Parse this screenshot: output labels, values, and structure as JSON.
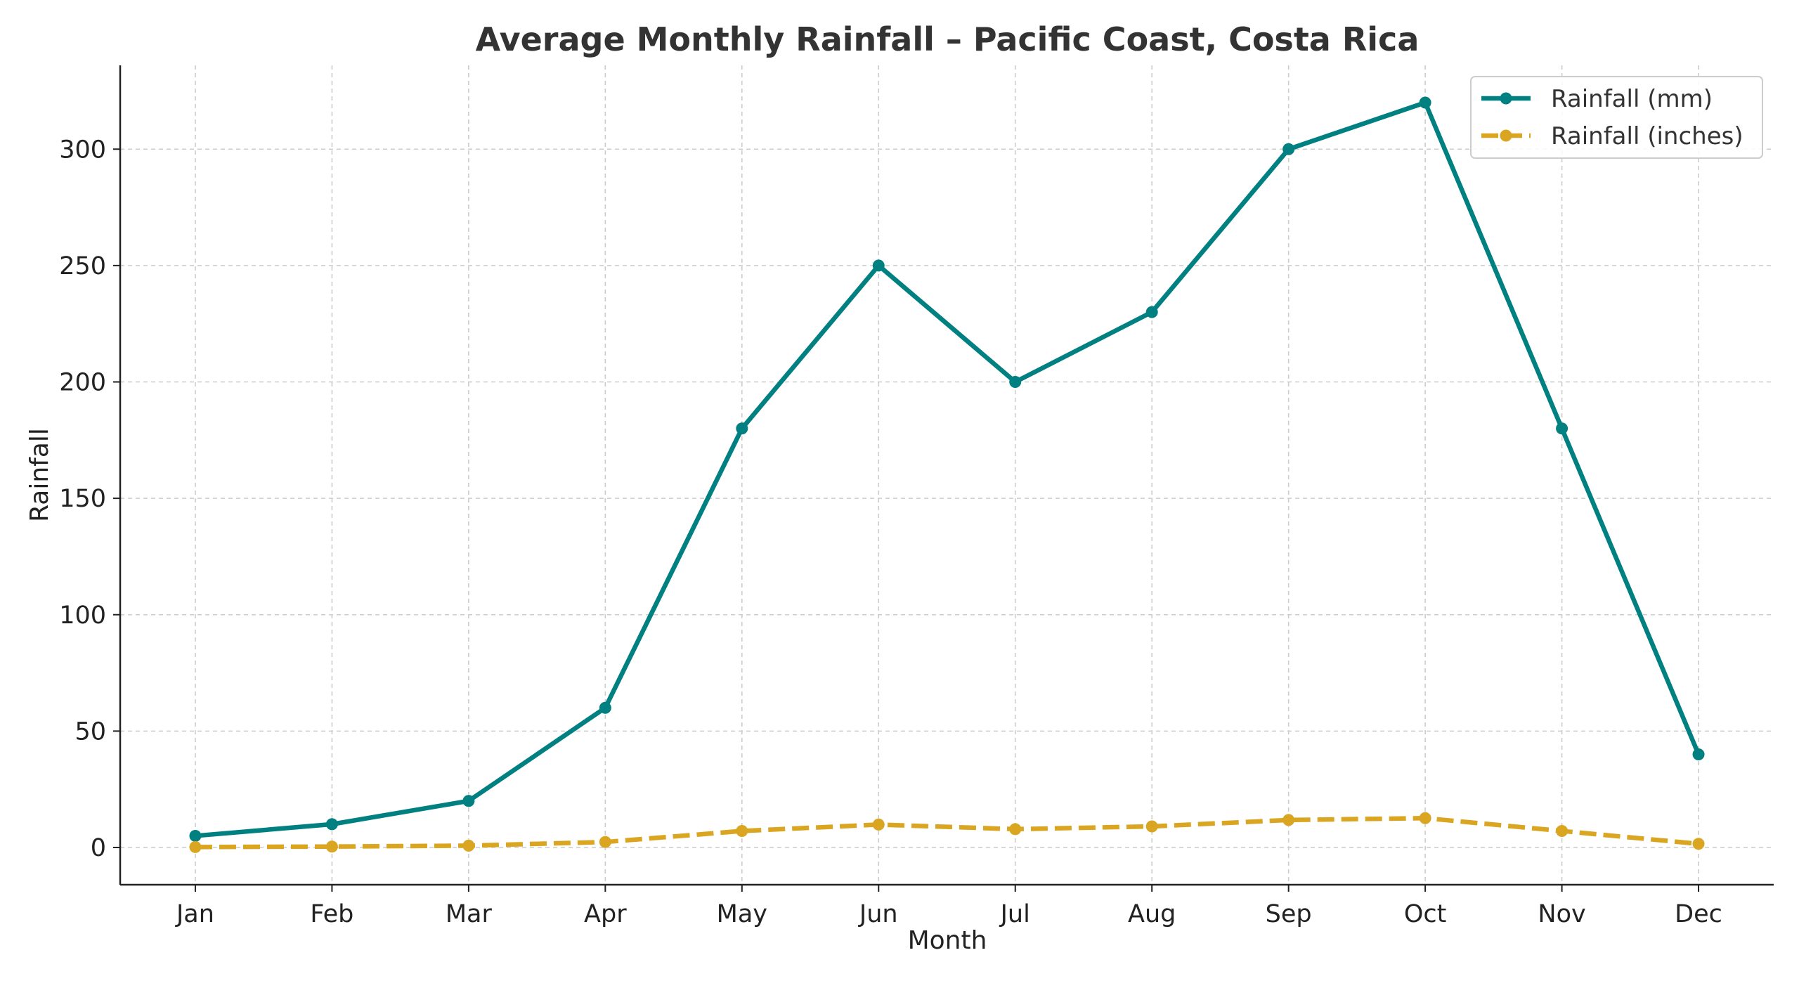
{
  "chart_data": {
    "type": "line",
    "title": "Average Monthly Rainfall – Pacific Coast, Costa Rica",
    "xlabel": "Month",
    "ylabel": "Rainfall",
    "categories": [
      "Jan",
      "Feb",
      "Mar",
      "Apr",
      "May",
      "Jun",
      "Jul",
      "Aug",
      "Sep",
      "Oct",
      "Nov",
      "Dec"
    ],
    "yticks": [
      0,
      50,
      100,
      150,
      200,
      250,
      300
    ],
    "ylim": [
      -16,
      336
    ],
    "grid": true,
    "legend_position": "top-right",
    "series": [
      {
        "name": "Rainfall (mm)",
        "values": [
          5,
          10,
          20,
          60,
          180,
          250,
          200,
          230,
          300,
          320,
          180,
          40
        ],
        "color": "#008080",
        "style": "solid",
        "marker": "circle"
      },
      {
        "name": "Rainfall (inches)",
        "values": [
          0.2,
          0.39,
          0.79,
          2.36,
          7.09,
          9.84,
          7.87,
          9.06,
          11.81,
          12.6,
          7.09,
          1.57
        ],
        "color": "#DAA520",
        "style": "dashed",
        "marker": "circle"
      }
    ]
  }
}
